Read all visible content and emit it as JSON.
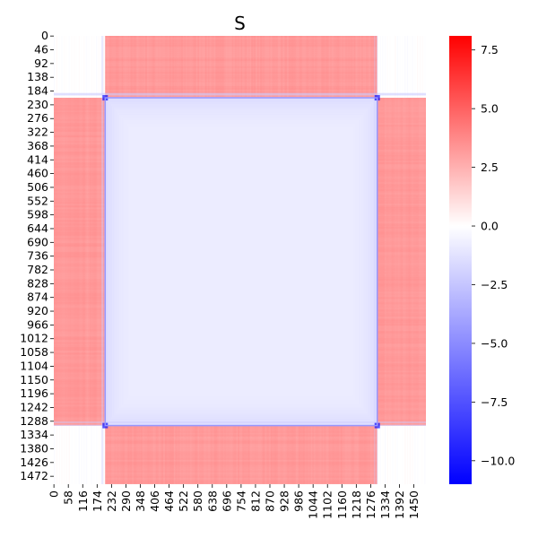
{
  "chart_data": {
    "type": "heatmap",
    "title": "S",
    "n": 1499,
    "block_boundaries": [
      0,
      207,
      1303,
      1499
    ],
    "block_means": [
      [
        0.0,
        3.2,
        0.0
      ],
      [
        3.2,
        -0.8,
        3.2
      ],
      [
        0.0,
        3.2,
        0.0
      ]
    ],
    "edge_highlights": {
      "outer_block_edge_rows": [
        191,
        195,
        1290,
        1300
      ],
      "inner_corner_min": -10.5
    },
    "x_tick_labels": [
      "0",
      "58",
      "116",
      "174",
      "232",
      "290",
      "348",
      "406",
      "464",
      "522",
      "580",
      "638",
      "696",
      "754",
      "812",
      "870",
      "928",
      "986",
      "1044",
      "1102",
      "1160",
      "1218",
      "1276",
      "1334",
      "1392",
      "1450"
    ],
    "y_tick_labels": [
      "0",
      "46",
      "92",
      "138",
      "184",
      "230",
      "276",
      "322",
      "368",
      "414",
      "460",
      "506",
      "552",
      "598",
      "644",
      "690",
      "736",
      "782",
      "828",
      "874",
      "920",
      "966",
      "1012",
      "1058",
      "1104",
      "1150",
      "1196",
      "1242",
      "1288",
      "1334",
      "1380",
      "1426",
      "1472"
    ],
    "colorbar": {
      "vmin": -11,
      "vmax": 8.1,
      "center": 0,
      "colors": [
        "#0000ff",
        "#ffffff",
        "#ff0000"
      ],
      "ticks": [
        7.5,
        5.0,
        2.5,
        0.0,
        -2.5,
        -5.0,
        -7.5,
        -10.0
      ],
      "tick_labels": [
        "7.5",
        "5.0",
        "2.5",
        "0.0",
        "−2.5",
        "−5.0",
        "−7.5",
        "−10.0"
      ]
    }
  }
}
